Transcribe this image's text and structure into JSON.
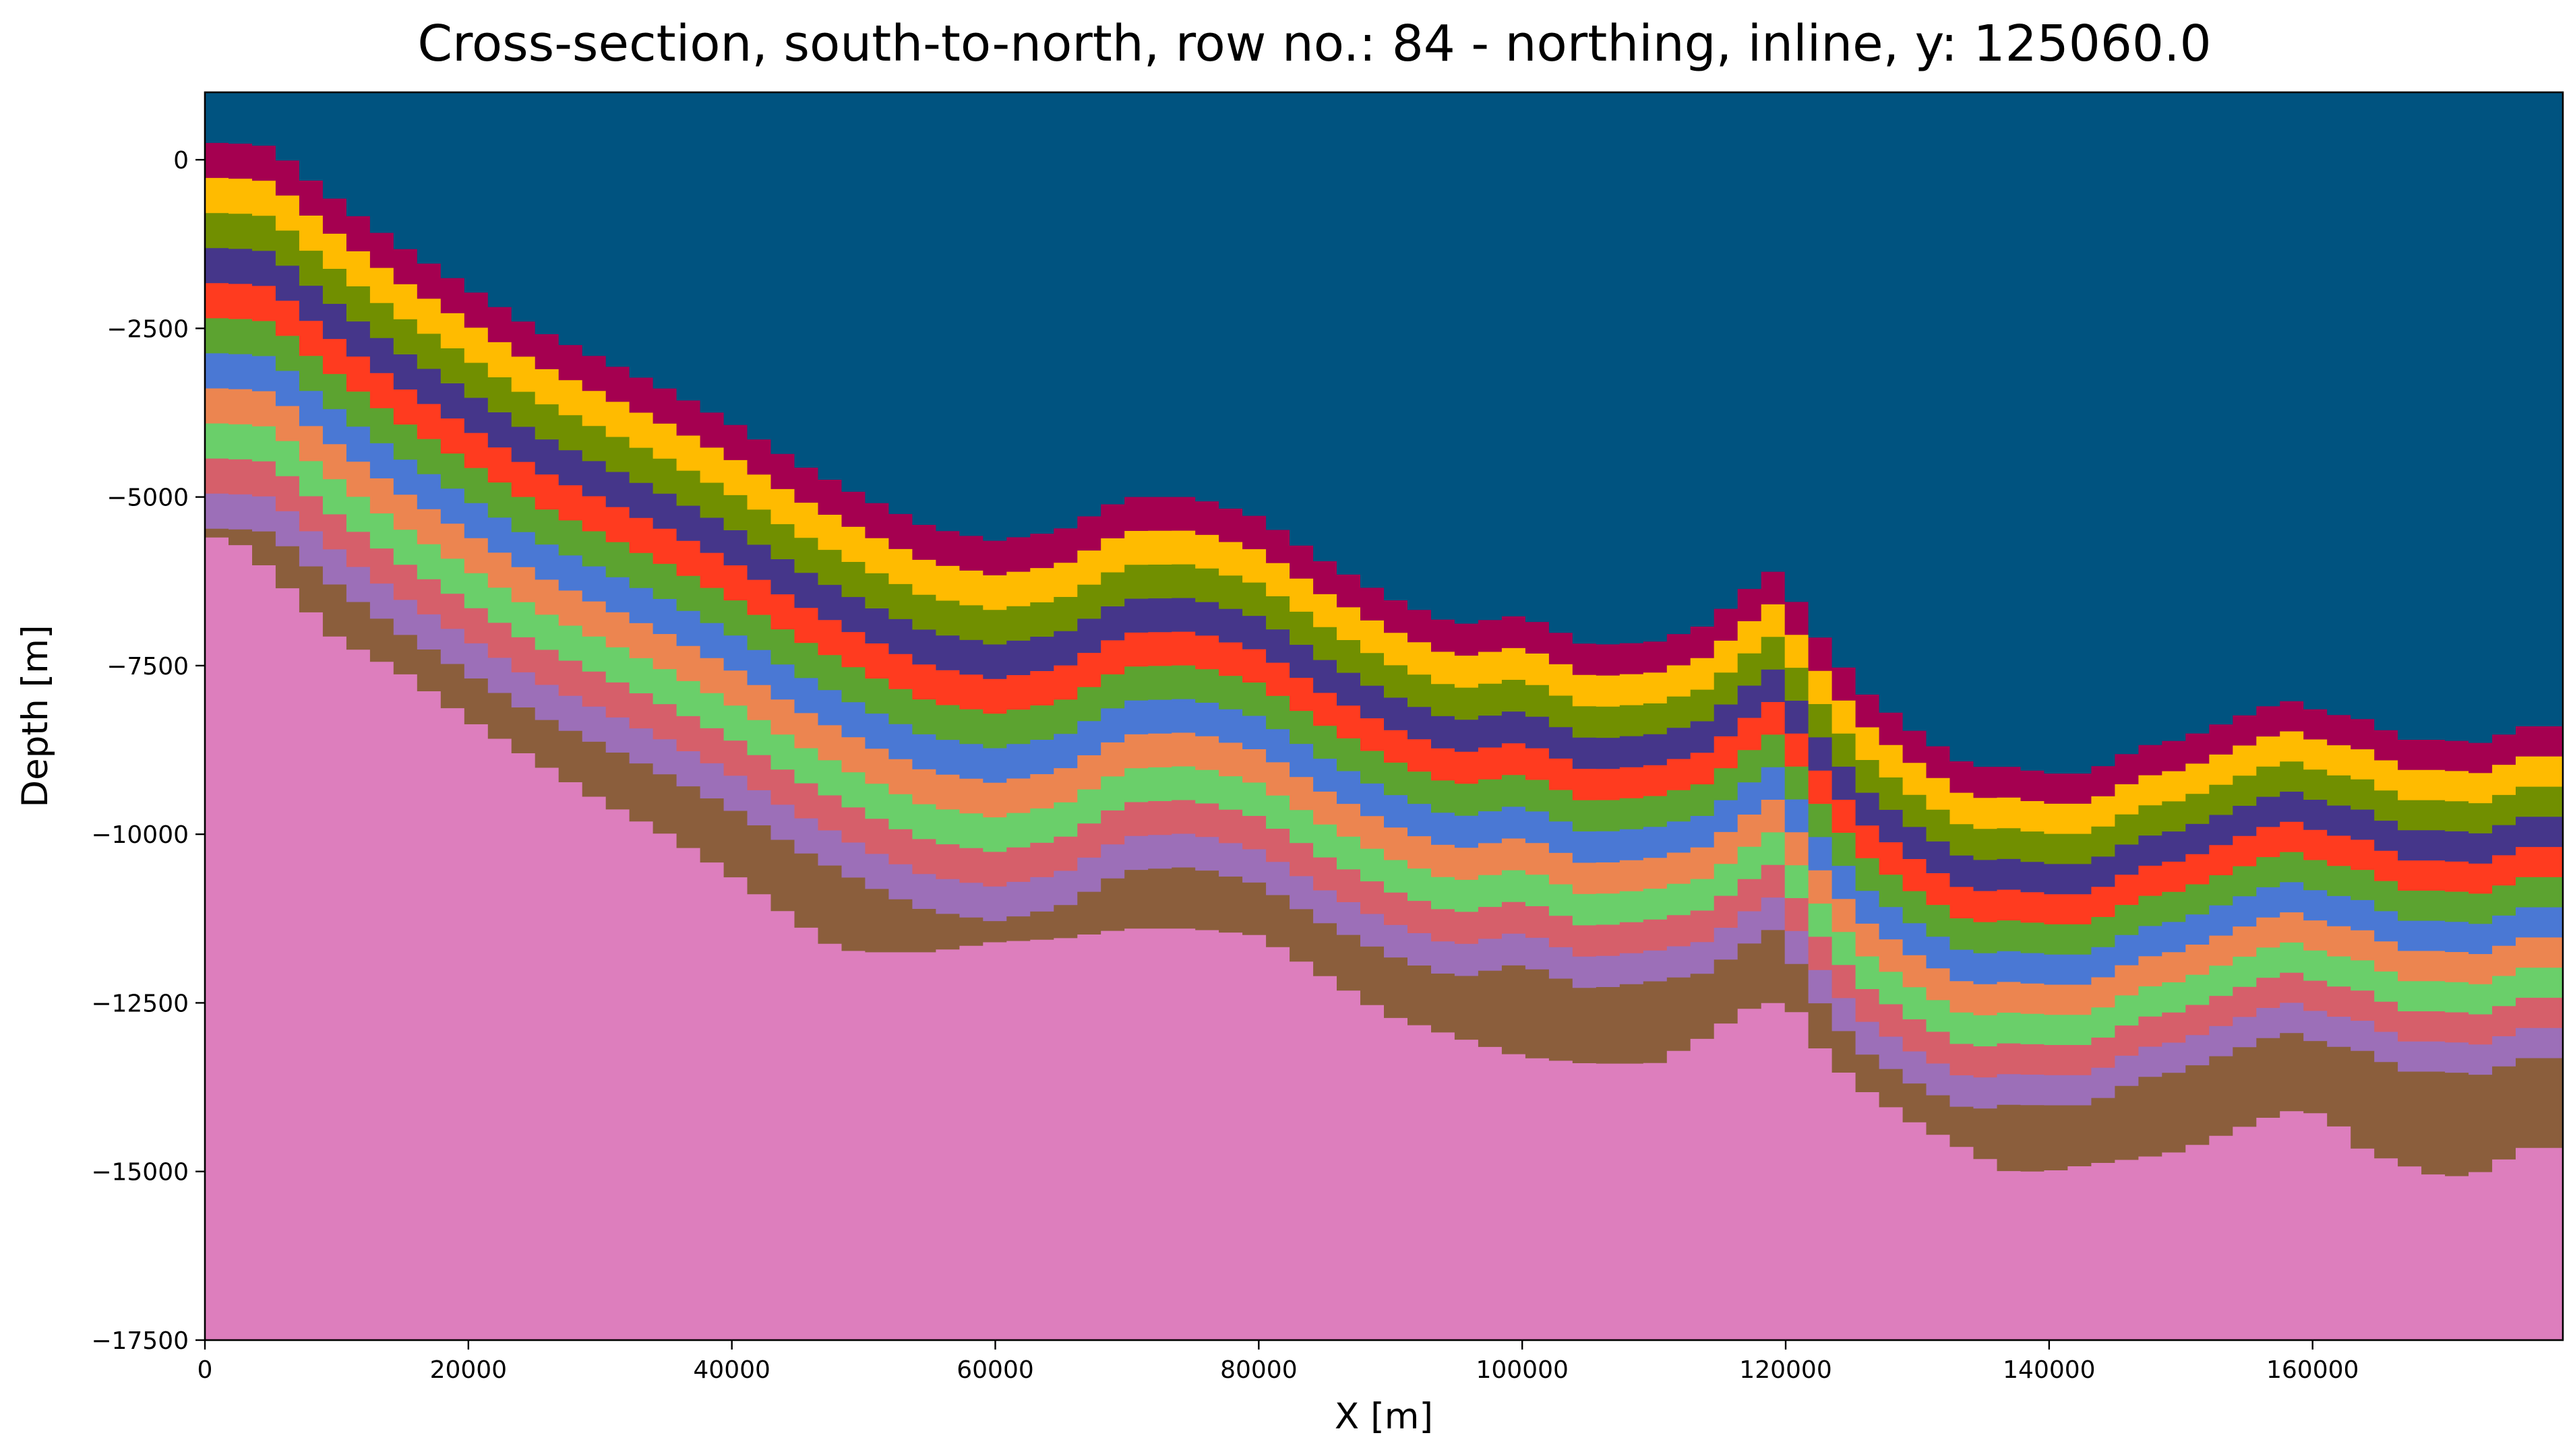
{
  "chart_data": {
    "type": "area",
    "title": "Cross-section, south-to-north, row no.: 84 - northing, inline, y: 125060.0",
    "xlabel": "X [m]",
    "ylabel": "Depth [m]",
    "xlim": [
      0,
      179000
    ],
    "ylim": [
      -17500,
      1000
    ],
    "x_ticks": [
      0,
      20000,
      40000,
      60000,
      80000,
      100000,
      120000,
      140000,
      160000
    ],
    "x_tick_labels": [
      "0",
      "20000",
      "40000",
      "60000",
      "80000",
      "100000",
      "120000",
      "140000",
      "160000"
    ],
    "y_ticks": [
      0,
      -2500,
      -5000,
      -7500,
      -10000,
      -12500,
      -15000,
      -17500
    ],
    "y_tick_labels": [
      "0",
      "−2500",
      "−5000",
      "−7500",
      "−10000",
      "−12500",
      "−15000",
      "−17500"
    ],
    "grid": false,
    "legend": "none",
    "top_surface": {
      "x": [
        0,
        2000,
        5000,
        8000,
        11000,
        15000,
        20000,
        25000,
        30000,
        35000,
        40000,
        45000,
        50000,
        55000,
        60000,
        65000,
        70000,
        75000,
        80000,
        85000,
        90000,
        95000,
        100000,
        105000,
        110000,
        114000,
        117000,
        119000,
        121000,
        123000,
        126000,
        130000,
        134000,
        137000,
        140000,
        143000,
        147000,
        150000,
        154000,
        158000,
        161000,
        164000,
        167000,
        170000,
        173000,
        176000,
        179000
      ],
      "y": [
        250,
        250,
        200,
        -300,
        -750,
        -1300,
        -1900,
        -2500,
        -2950,
        -3400,
        -3900,
        -4500,
        -5000,
        -5450,
        -5650,
        -5500,
        -5000,
        -5000,
        -5300,
        -5950,
        -6500,
        -6900,
        -6750,
        -7200,
        -7150,
        -6900,
        -6400,
        -6100,
        -6600,
        -7200,
        -7900,
        -8500,
        -9000,
        -9000,
        -9100,
        -9100,
        -8700,
        -8600,
        -8300,
        -8000,
        -8200,
        -8300,
        -8600,
        -8600,
        -8650,
        -8400,
        -8400
      ]
    },
    "layer_thickness_m": 520,
    "layer_colors": [
      "#a50050",
      "#ffbb00",
      "#718f00",
      "#45368a",
      "#ff3b1f",
      "#5ca330",
      "#4a78d4",
      "#ec8550",
      "#6acf6a",
      "#d65f6a",
      "#9c6fb8",
      "#8b5e3c"
    ],
    "background_color": "#005380",
    "basement_color": "#dd7ebd",
    "basement_boundary": {
      "x": [
        0,
        2000,
        5000,
        8000,
        10000,
        15000,
        20000,
        25000,
        30000,
        35000,
        40000,
        45000,
        48000,
        50000,
        55000,
        60000,
        65000,
        70000,
        75000,
        80000,
        85000,
        90000,
        95000,
        100000,
        105000,
        110000,
        114000,
        117000,
        119000,
        121000,
        123000,
        126000,
        130000,
        134000,
        137000,
        140000,
        143000,
        147000,
        150000,
        154000,
        158000,
        161000,
        164000,
        167000,
        170000,
        173000,
        176000,
        179000
      ],
      "y": [
        -5600,
        -5600,
        -6100,
        -6700,
        -7100,
        -7600,
        -8300,
        -8900,
        -9500,
        -10000,
        -10600,
        -11300,
        -11700,
        -11750,
        -11750,
        -11600,
        -11550,
        -11400,
        -11400,
        -11500,
        -12100,
        -12700,
        -13000,
        -13300,
        -13400,
        -13400,
        -13000,
        -12600,
        -12500,
        -12650,
        -13300,
        -13800,
        -14300,
        -14700,
        -15000,
        -15000,
        -14900,
        -14800,
        -14700,
        -14400,
        -14100,
        -14150,
        -14700,
        -14900,
        -15100,
        -15000,
        -14650,
        -14650
      ]
    },
    "tapering": {
      "top_at": [
        0,
        52000,
        80000,
        110000,
        123000,
        140000,
        179000
      ],
      "factor": [
        1.0,
        1.0,
        0.95,
        0.88,
        0.95,
        0.86,
        0.86
      ]
    }
  }
}
